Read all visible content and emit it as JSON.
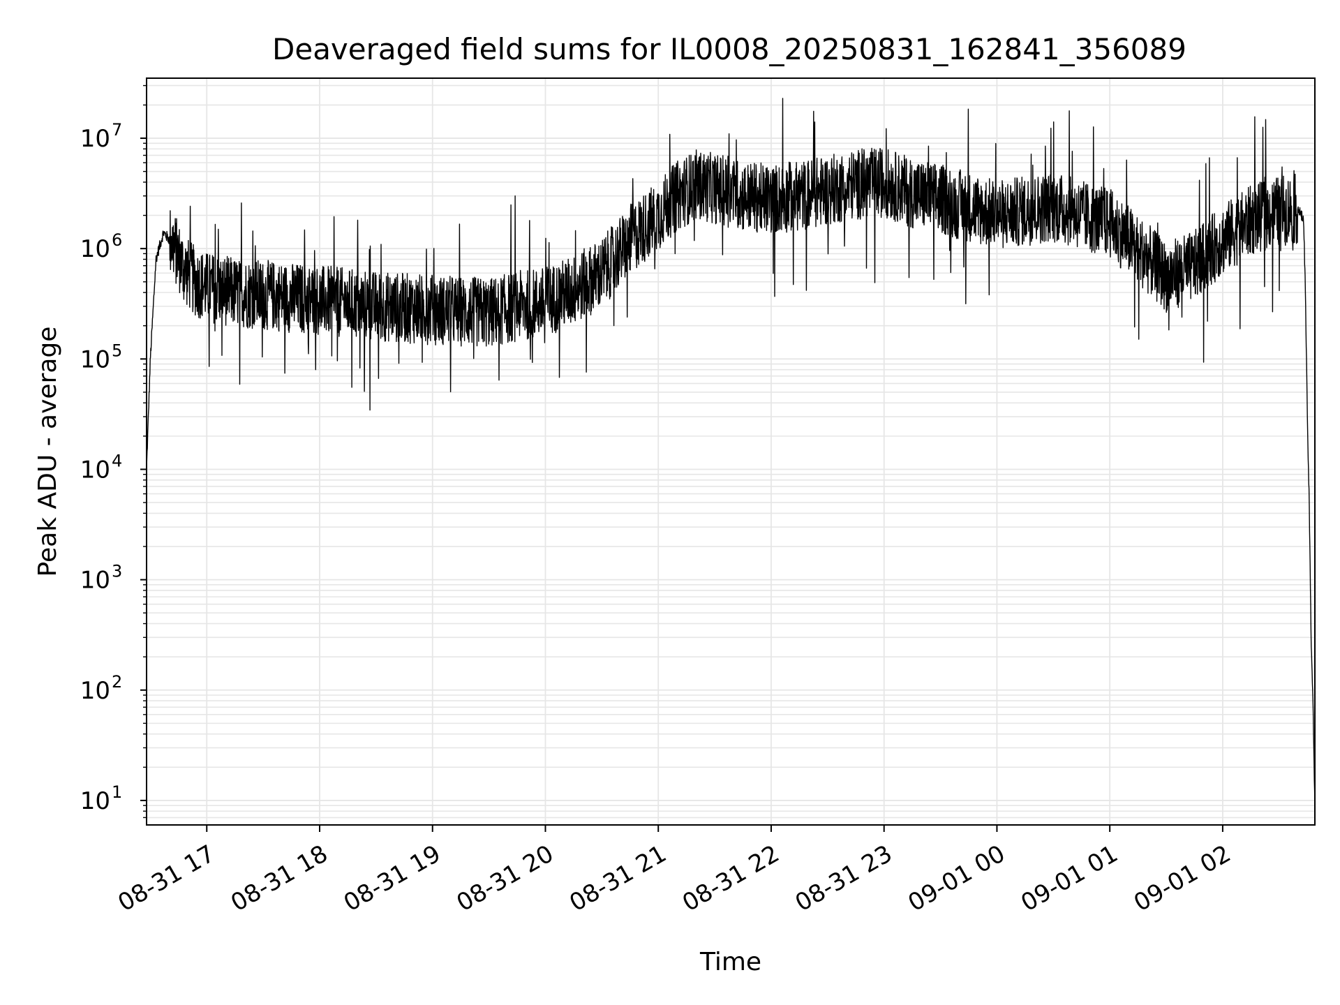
{
  "chart_data": {
    "type": "line",
    "title": "Deaveraged field sums for IL0008_20250831_162841_356089",
    "xlabel": "Time",
    "ylabel": "Peak ADU - average",
    "yscale": "log",
    "ylim": [
      6,
      35000000
    ],
    "xlim": [
      "2025-08-31 16:28",
      "2025-09-01 02:49"
    ],
    "grid": true,
    "line_color": "#000000",
    "grid_color": "#e6e6e6",
    "x_ticks": [
      {
        "label": "08-31 17",
        "value": "2025-08-31 17:00"
      },
      {
        "label": "08-31 18",
        "value": "2025-08-31 18:00"
      },
      {
        "label": "08-31 19",
        "value": "2025-08-31 19:00"
      },
      {
        "label": "08-31 20",
        "value": "2025-08-31 20:00"
      },
      {
        "label": "08-31 21",
        "value": "2025-08-31 21:00"
      },
      {
        "label": "08-31 22",
        "value": "2025-08-31 22:00"
      },
      {
        "label": "08-31 23",
        "value": "2025-08-31 23:00"
      },
      {
        "label": "09-01 00",
        "value": "2025-09-01 00:00"
      },
      {
        "label": "09-01 01",
        "value": "2025-09-01 01:00"
      },
      {
        "label": "09-01 02",
        "value": "2025-09-01 02:00"
      }
    ],
    "y_ticks": [
      {
        "base": "10",
        "exp": "1",
        "value": 10
      },
      {
        "base": "10",
        "exp": "2",
        "value": 100
      },
      {
        "base": "10",
        "exp": "3",
        "value": 1000
      },
      {
        "base": "10",
        "exp": "4",
        "value": 10000
      },
      {
        "base": "10",
        "exp": "5",
        "value": 100000
      },
      {
        "base": "10",
        "exp": "6",
        "value": 1000000
      },
      {
        "base": "10",
        "exp": "7",
        "value": 10000000
      }
    ],
    "series": [
      {
        "x": [
          "2025-08-31 16:28",
          "2025-08-31 16:30",
          "2025-08-31 16:33",
          "2025-08-31 16:37",
          "2025-08-31 16:42",
          "2025-08-31 16:48",
          "2025-08-31 16:54",
          "2025-08-31 17:00",
          "2025-08-31 17:15",
          "2025-08-31 17:30",
          "2025-08-31 17:45",
          "2025-08-31 18:00",
          "2025-08-31 18:15",
          "2025-08-31 18:30",
          "2025-08-31 18:45",
          "2025-08-31 19:00",
          "2025-08-31 19:15",
          "2025-08-31 19:30",
          "2025-08-31 19:45",
          "2025-08-31 20:00",
          "2025-08-31 20:15",
          "2025-08-31 20:30",
          "2025-08-31 20:45",
          "2025-08-31 21:00",
          "2025-08-31 21:10",
          "2025-08-31 21:20",
          "2025-08-31 21:30",
          "2025-08-31 21:45",
          "2025-08-31 22:00",
          "2025-08-31 22:15",
          "2025-08-31 22:30",
          "2025-08-31 22:45",
          "2025-08-31 23:00",
          "2025-08-31 23:15",
          "2025-08-31 23:30",
          "2025-08-31 23:45",
          "2025-09-01 00:00",
          "2025-09-01 00:15",
          "2025-09-01 00:30",
          "2025-09-01 00:45",
          "2025-09-01 01:00",
          "2025-09-01 01:15",
          "2025-09-01 01:30",
          "2025-09-01 01:45",
          "2025-09-01 02:00",
          "2025-09-01 02:15",
          "2025-09-01 02:30",
          "2025-09-01 02:40",
          "2025-09-01 02:43",
          "2025-09-01 02:44",
          "2025-09-01 02:45",
          "2025-09-01 02:46",
          "2025-09-01 02:47",
          "2025-09-01 02:48",
          "2025-09-01 02:49"
        ],
        "y": [
          10000,
          100000,
          800000,
          1400000,
          1100000,
          650000,
          500000,
          450000,
          400000,
          380000,
          360000,
          340000,
          320000,
          300000,
          290000,
          280000,
          270000,
          260000,
          300000,
          330000,
          420000,
          600000,
          1200000,
          2000000,
          3000000,
          3800000,
          3500000,
          3000000,
          2800000,
          3000000,
          3400000,
          3800000,
          4000000,
          3200000,
          2800000,
          2400000,
          2000000,
          2200000,
          2400000,
          2000000,
          1700000,
          1000000,
          550000,
          700000,
          1200000,
          1800000,
          2200000,
          2300000,
          1800000,
          400000,
          30000,
          5000,
          300,
          80,
          8
        ]
      }
    ]
  }
}
